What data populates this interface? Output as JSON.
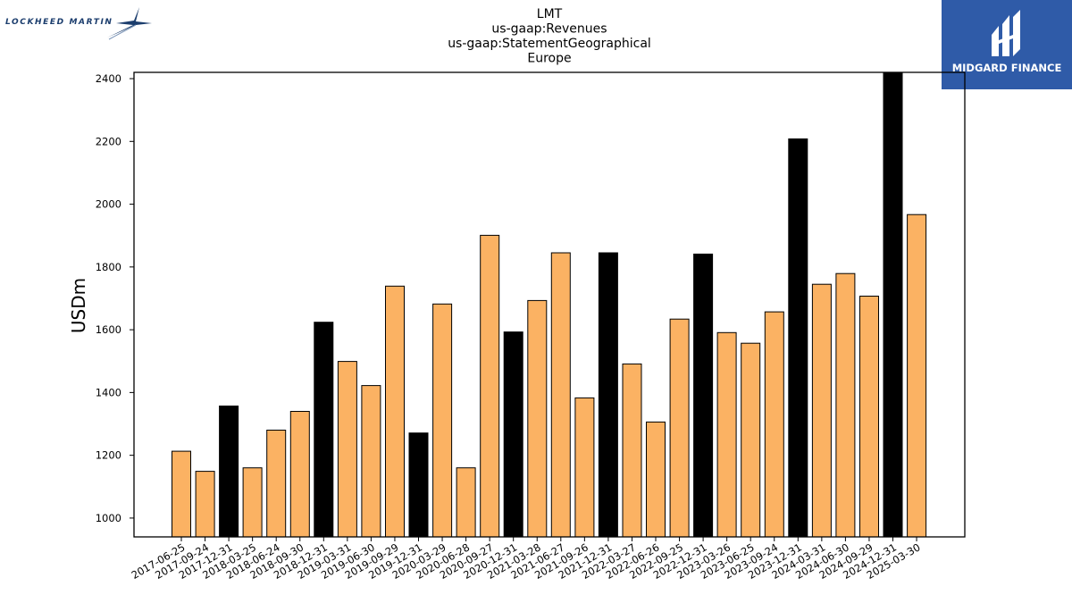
{
  "logos": {
    "left_text": "LOCKHEED MARTIN",
    "right_text": "MIDGARD FINANCE"
  },
  "colors": {
    "regular_bar": "#fbb263",
    "annual_bar": "#000000",
    "bar_edge": "#000000",
    "logo_right_bg": "#2f5ba8",
    "logo_left_text": "#1b3d6d"
  },
  "chart_data": {
    "type": "bar",
    "title_lines": [
      "LMT",
      "us-gaap:Revenues",
      "us-gaap:StatementGeographical",
      "Europe"
    ],
    "xlabel": "",
    "ylabel": "USDm",
    "ylim": [
      940,
      2420
    ],
    "yticks": [
      1000,
      1200,
      1400,
      1600,
      1800,
      2000,
      2200,
      2400
    ],
    "grid": false,
    "categories": [
      "2017-06-25",
      "2017-09-24",
      "2017-12-31",
      "2018-03-25",
      "2018-06-24",
      "2018-09-30",
      "2018-12-31",
      "2019-03-31",
      "2019-06-30",
      "2019-09-29",
      "2019-12-31",
      "2020-03-29",
      "2020-06-28",
      "2020-09-27",
      "2020-12-31",
      "2021-03-28",
      "2021-06-27",
      "2021-09-26",
      "2021-12-31",
      "2022-03-27",
      "2022-06-26",
      "2022-09-25",
      "2022-12-31",
      "2023-03-26",
      "2023-06-25",
      "2023-09-24",
      "2023-12-31",
      "2024-03-31",
      "2024-06-30",
      "2024-09-29",
      "2024-12-31",
      "2025-03-30"
    ],
    "values": [
      1213,
      1149,
      1357,
      1160,
      1280,
      1340,
      1624,
      1499,
      1422,
      1739,
      1271,
      1682,
      1160,
      1901,
      1593,
      1693,
      1845,
      1383,
      1845,
      1491,
      1306,
      1634,
      1841,
      1591,
      1557,
      1657,
      2208,
      1745,
      1779,
      1707,
      2420,
      1967
    ],
    "annual": [
      false,
      false,
      true,
      false,
      false,
      false,
      true,
      false,
      false,
      false,
      true,
      false,
      false,
      false,
      true,
      false,
      false,
      false,
      true,
      false,
      false,
      false,
      true,
      false,
      false,
      false,
      true,
      false,
      false,
      false,
      true,
      false
    ]
  }
}
